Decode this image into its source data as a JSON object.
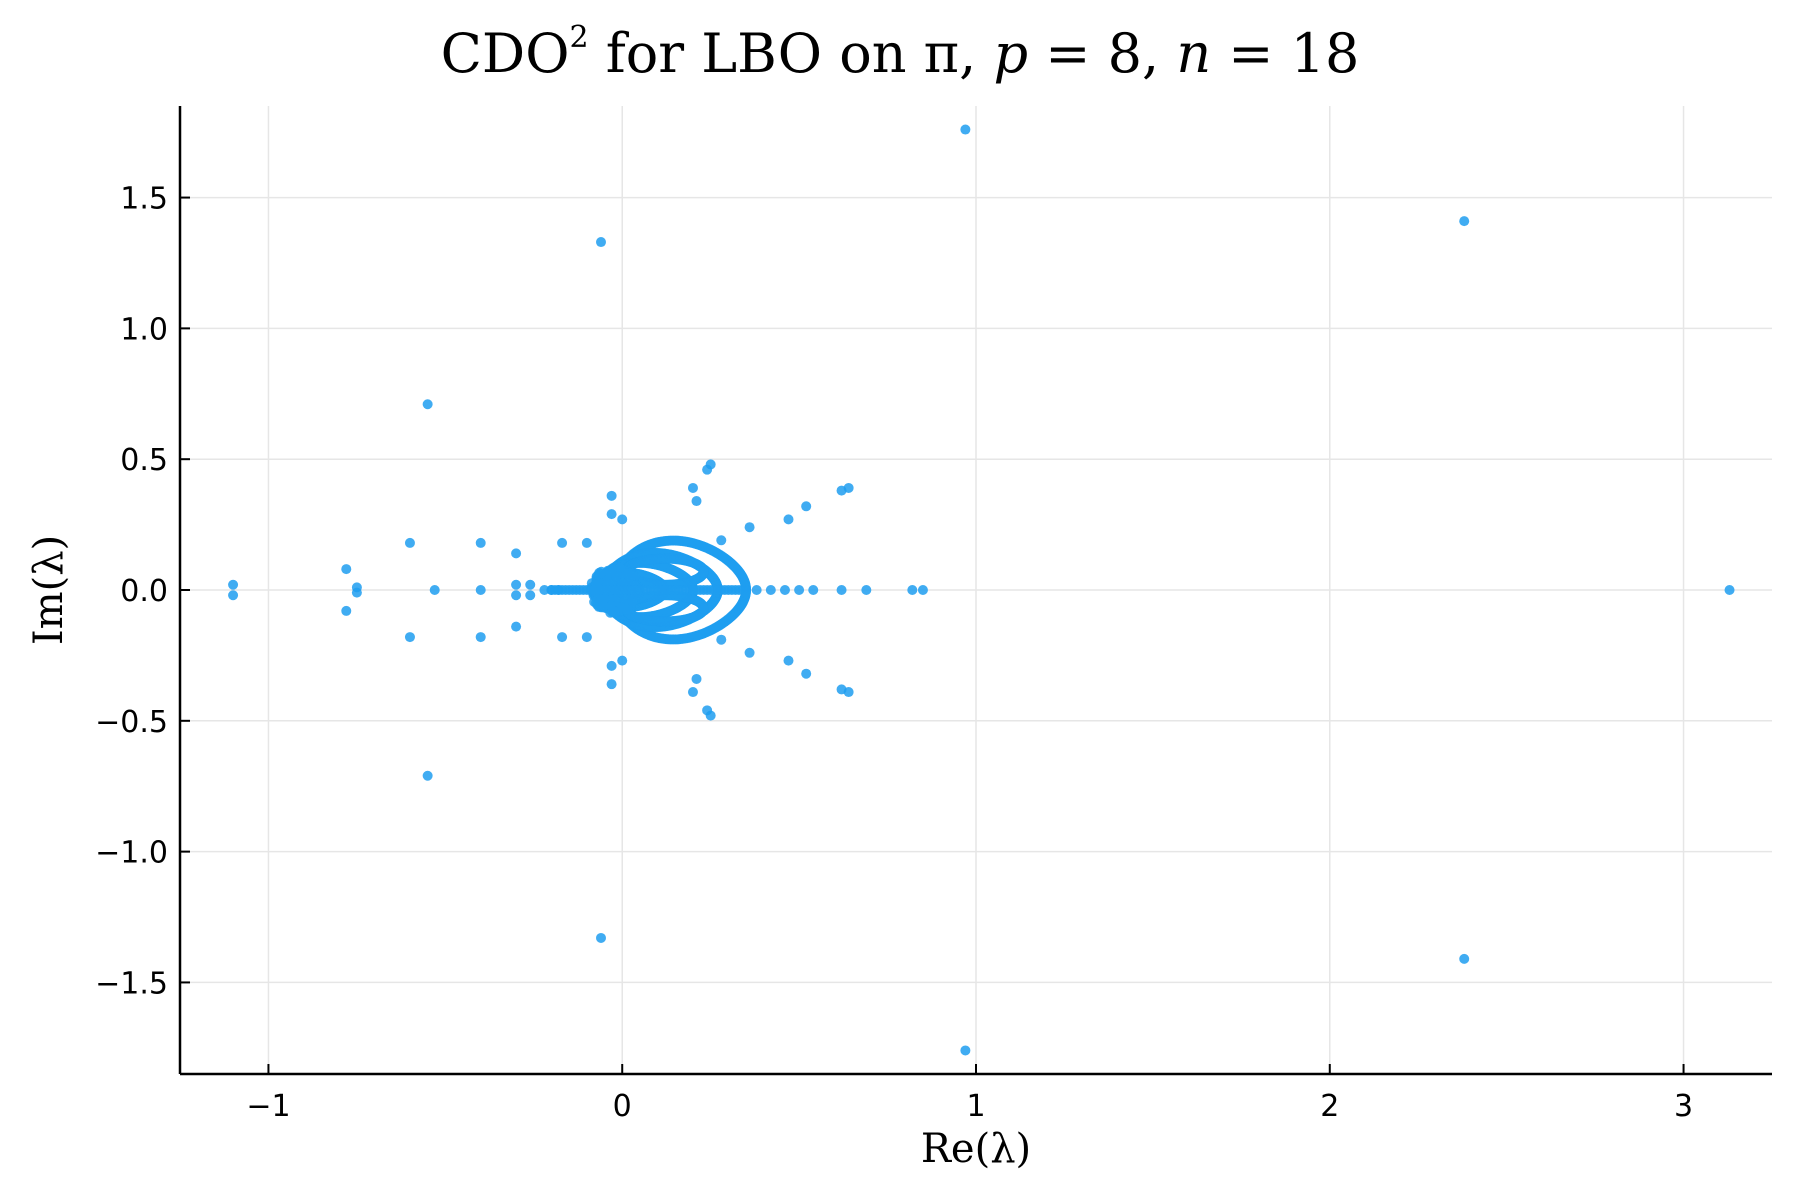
{
  "title": {
    "prefix": "CDO",
    "superscript": "2",
    "middle": " for LBO on π, ",
    "var_p": "p",
    "eq_p": " = 8, ",
    "var_n": "n",
    "eq_n": " = 18"
  },
  "chart_data": {
    "type": "scatter",
    "title": "CDO^2 for LBO on π, p = 8, n = 18",
    "xlabel": "Re(λ)",
    "ylabel": "Im(λ)",
    "xlim": [
      -1.25,
      3.25
    ],
    "ylim": [
      -1.85,
      1.85
    ],
    "xticks": [
      -1,
      0,
      1,
      2,
      3
    ],
    "xtick_labels": [
      "−1",
      "0",
      "1",
      "2",
      "3"
    ],
    "yticks": [
      -1.5,
      -1.0,
      -0.5,
      0.0,
      0.5,
      1.0,
      1.5
    ],
    "ytick_labels": [
      "−1.5",
      "−1.0",
      "−0.5",
      "0.0",
      "0.5",
      "1.0",
      "1.5"
    ],
    "grid": true,
    "legend": "none",
    "marker_color": "#1f9ef0",
    "isolated_points": [
      [
        -1.1,
        0.02
      ],
      [
        -1.1,
        -0.02
      ],
      [
        -0.78,
        0.08
      ],
      [
        -0.78,
        -0.08
      ],
      [
        -0.75,
        0.01
      ],
      [
        -0.75,
        -0.01
      ],
      [
        -0.6,
        0.18
      ],
      [
        -0.6,
        -0.18
      ],
      [
        -0.55,
        0.71
      ],
      [
        -0.55,
        -0.71
      ],
      [
        -0.53,
        0.0
      ],
      [
        -0.4,
        0.0
      ],
      [
        -0.4,
        0.18
      ],
      [
        -0.4,
        -0.18
      ],
      [
        -0.3,
        0.14
      ],
      [
        -0.3,
        -0.14
      ],
      [
        -0.3,
        0.02
      ],
      [
        -0.3,
        -0.02
      ],
      [
        -0.26,
        0.02
      ],
      [
        -0.26,
        -0.02
      ],
      [
        -0.22,
        0.0
      ],
      [
        -0.2,
        0.0
      ],
      [
        -0.18,
        0.0
      ],
      [
        -0.17,
        0.18
      ],
      [
        -0.17,
        -0.18
      ],
      [
        -0.1,
        0.18
      ],
      [
        -0.1,
        -0.18
      ],
      [
        -0.06,
        1.33
      ],
      [
        -0.06,
        -1.33
      ],
      [
        -0.03,
        0.36
      ],
      [
        -0.03,
        -0.36
      ],
      [
        -0.03,
        0.29
      ],
      [
        -0.03,
        -0.29
      ],
      [
        0.0,
        0.27
      ],
      [
        0.0,
        -0.27
      ],
      [
        0.2,
        0.39
      ],
      [
        0.2,
        -0.39
      ],
      [
        0.21,
        0.34
      ],
      [
        0.21,
        -0.34
      ],
      [
        0.24,
        0.46
      ],
      [
        0.24,
        -0.46
      ],
      [
        0.25,
        0.48
      ],
      [
        0.25,
        -0.48
      ],
      [
        0.28,
        0.19
      ],
      [
        0.28,
        -0.19
      ],
      [
        0.36,
        0.24
      ],
      [
        0.36,
        -0.24
      ],
      [
        0.47,
        0.27
      ],
      [
        0.47,
        -0.27
      ],
      [
        0.52,
        0.32
      ],
      [
        0.52,
        -0.32
      ],
      [
        0.62,
        0.38
      ],
      [
        0.62,
        -0.38
      ],
      [
        0.64,
        0.39
      ],
      [
        0.64,
        -0.39
      ],
      [
        0.38,
        0.0
      ],
      [
        0.42,
        0.0
      ],
      [
        0.46,
        0.0
      ],
      [
        0.5,
        0.0
      ],
      [
        0.54,
        0.0
      ],
      [
        0.62,
        0.0
      ],
      [
        0.69,
        0.0
      ],
      [
        0.82,
        0.0
      ],
      [
        0.85,
        0.0
      ],
      [
        0.97,
        1.76
      ],
      [
        0.97,
        -1.76
      ],
      [
        2.38,
        1.41
      ],
      [
        2.38,
        -1.41
      ],
      [
        3.13,
        0.0
      ]
    ],
    "dense_cluster": {
      "description": "dense curves of eigenvalues forming overlapping loops near the origin",
      "lobes": [
        {
          "left": -0.02,
          "right": 0.35,
          "half_height": 0.2
        },
        {
          "left": -0.05,
          "right": 0.27,
          "half_height": 0.15
        },
        {
          "left": -0.07,
          "right": 0.2,
          "half_height": 0.11
        },
        {
          "left": -0.08,
          "right": 0.12,
          "half_height": 0.07
        }
      ],
      "inner_loops": [
        {
          "cx": 0.12,
          "cy": 0.07,
          "rx": 0.11,
          "ry": 0.05
        },
        {
          "cx": 0.12,
          "cy": -0.07,
          "rx": 0.11,
          "ry": 0.05
        }
      ],
      "real_axis_segment": [
        -0.2,
        0.35
      ]
    }
  }
}
